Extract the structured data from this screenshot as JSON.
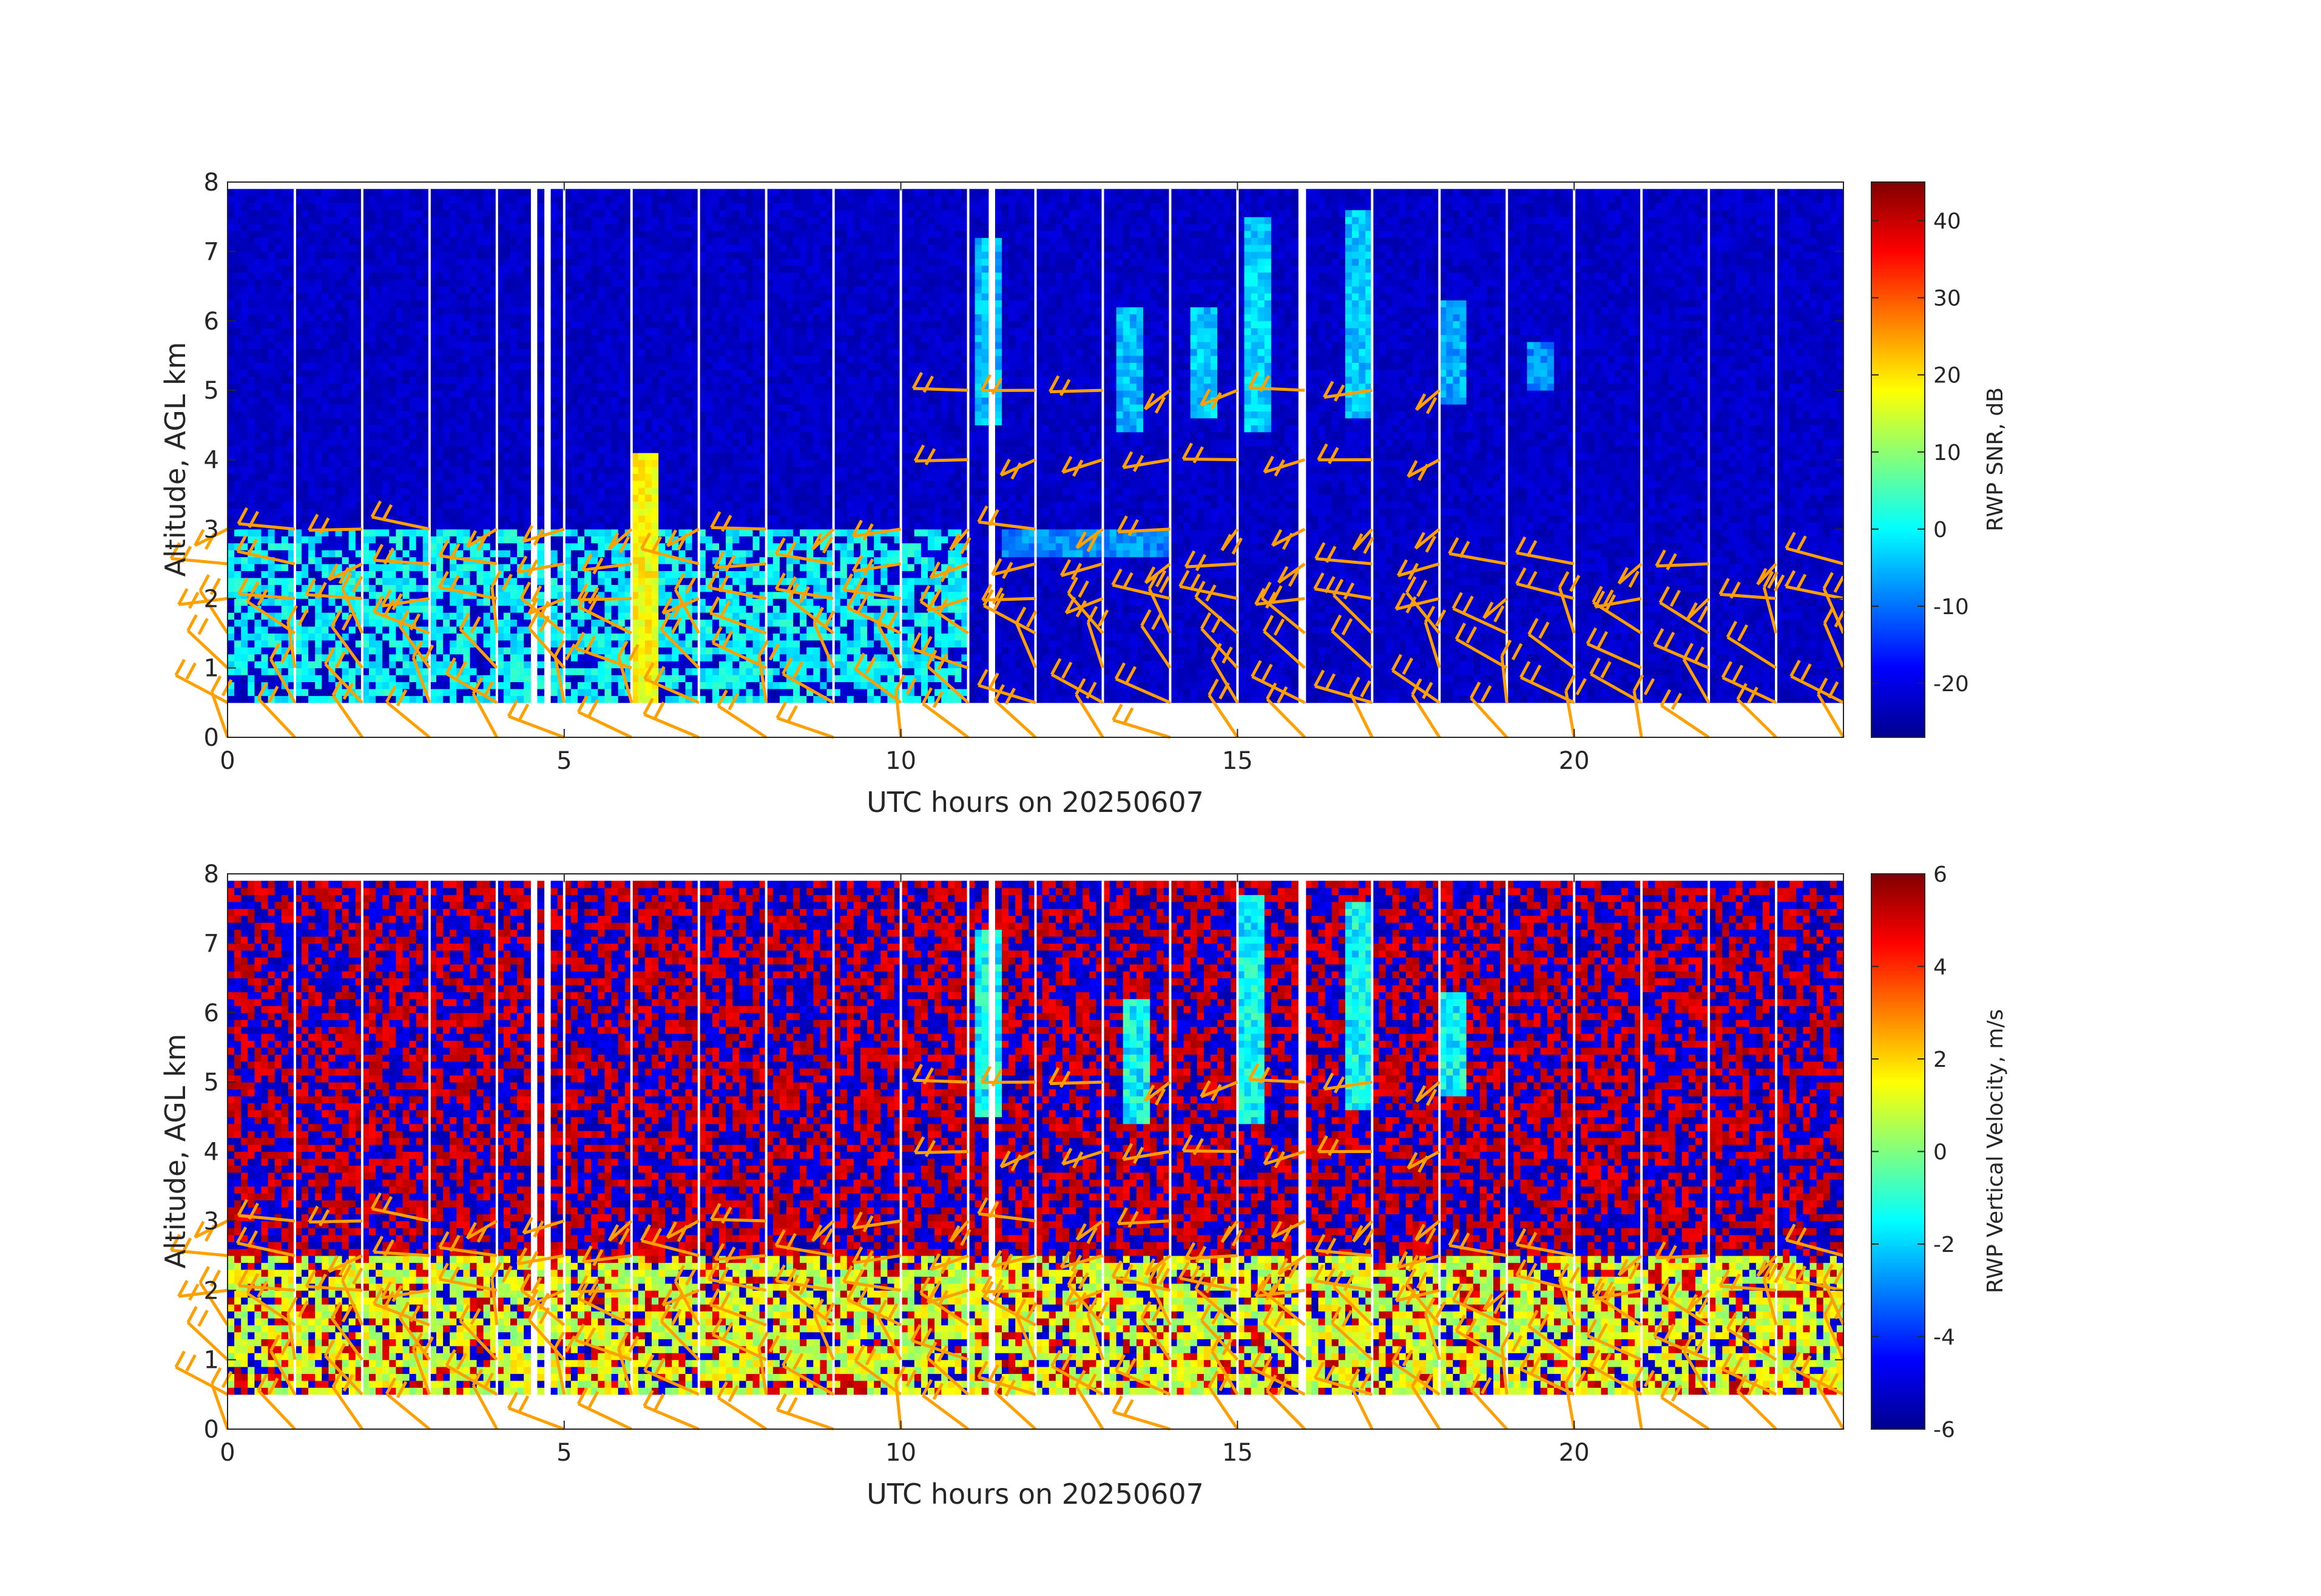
{
  "chart_data": [
    {
      "type": "heatmap",
      "title": "",
      "xlabel": "UTC hours on 20250607",
      "ylabel": "Altitude, AGL km",
      "xlim": [
        0,
        24
      ],
      "ylim": [
        0,
        8
      ],
      "x_ticks": [
        0,
        5,
        10,
        15,
        20
      ],
      "y_ticks": [
        0,
        1,
        2,
        3,
        4,
        5,
        6,
        7,
        8
      ],
      "data_range_km": [
        0.5,
        7.9
      ],
      "colormap": "jet",
      "colorbar": {
        "label": "RWP SNR, dB",
        "range": [
          -27,
          45
        ],
        "ticks": [
          -20,
          -10,
          0,
          10,
          20,
          30,
          40
        ]
      },
      "background_value": -22,
      "features": [
        {
          "name": "boundary-layer",
          "x_range": [
            0,
            11
          ],
          "alt_range": [
            0.5,
            3.0
          ],
          "value": 0
        },
        {
          "name": "convective-plume",
          "x": 6.2,
          "alt_range": [
            0.5,
            4.1
          ],
          "value": 18
        },
        {
          "name": "upper-cloud",
          "x": 11.3,
          "alt_range": [
            4.5,
            7.2
          ],
          "value": -5
        },
        {
          "name": "upper-cloud",
          "x": 13.4,
          "alt_range": [
            4.4,
            6.2
          ],
          "value": -5
        },
        {
          "name": "upper-cloud",
          "x": 14.5,
          "alt_range": [
            4.6,
            6.2
          ],
          "value": -4
        },
        {
          "name": "upper-cloud",
          "x": 15.3,
          "alt_range": [
            4.4,
            7.5
          ],
          "value": -3
        },
        {
          "name": "upper-cloud",
          "x": 16.8,
          "alt_range": [
            4.6,
            7.6
          ],
          "value": -4
        },
        {
          "name": "upper-cloud",
          "x": 18.2,
          "alt_range": [
            4.8,
            6.3
          ],
          "value": -6
        },
        {
          "name": "upper-cloud",
          "x": 19.5,
          "alt_range": [
            5.0,
            5.7
          ],
          "value": -8
        },
        {
          "name": "mid-layer",
          "x_range": [
            11.5,
            14.0
          ],
          "alt_range": [
            2.6,
            3.0
          ],
          "value": -8
        }
      ],
      "wind_barbs": "orange, hourly, altitudes 0-5 km"
    },
    {
      "type": "heatmap",
      "title": "",
      "xlabel": "UTC hours on 20250607",
      "ylabel": "Altitude, AGL km",
      "xlim": [
        0,
        24
      ],
      "ylim": [
        0,
        8
      ],
      "x_ticks": [
        0,
        5,
        10,
        15,
        20
      ],
      "y_ticks": [
        0,
        1,
        2,
        3,
        4,
        5,
        6,
        7,
        8
      ],
      "data_range_km": [
        0.5,
        7.9
      ],
      "colormap": "jet",
      "colorbar": {
        "label": "RWP Vertical Velocity, m/s",
        "range": [
          -6,
          6
        ],
        "ticks": [
          -6,
          -4,
          -2,
          0,
          2,
          4,
          6
        ]
      },
      "background": "noise (alternating -6 / +6 m/s)",
      "features": [
        {
          "name": "boundary-layer",
          "x_range": [
            0,
            24
          ],
          "alt_range": [
            0.5,
            2.5
          ],
          "value": 1
        },
        {
          "name": "upper-cloud",
          "x": 11.3,
          "alt_range": [
            4.5,
            7.2
          ],
          "value": -1.5
        },
        {
          "name": "upper-cloud",
          "x": 13.5,
          "alt_range": [
            4.4,
            6.2
          ],
          "value": -1.5
        },
        {
          "name": "upper-cloud",
          "x": 15.2,
          "alt_range": [
            4.4,
            7.7
          ],
          "value": -1.5
        },
        {
          "name": "upper-cloud",
          "x": 16.8,
          "alt_range": [
            4.6,
            7.6
          ],
          "value": -1.5
        },
        {
          "name": "upper-cloud",
          "x": 18.2,
          "alt_range": [
            4.8,
            6.3
          ],
          "value": -1.5
        }
      ],
      "wind_barbs": "orange, hourly, altitudes 0-5 km"
    }
  ],
  "panels": [
    {
      "xlabel": "UTC hours on 20250607",
      "ylabel": "Altitude, AGL km",
      "cb_label": "RWP SNR, dB",
      "x_ticks": [
        "0",
        "5",
        "10",
        "15",
        "20"
      ],
      "y_ticks": [
        "0",
        "1",
        "2",
        "3",
        "4",
        "5",
        "6",
        "7",
        "8"
      ],
      "cb_ticks": [
        "-20",
        "-10",
        "0",
        "10",
        "20",
        "30",
        "40"
      ]
    },
    {
      "xlabel": "UTC hours on 20250607",
      "ylabel": "Altitude, AGL km",
      "cb_label": "RWP Vertical Velocity, m/s",
      "x_ticks": [
        "0",
        "5",
        "10",
        "15",
        "20"
      ],
      "y_ticks": [
        "0",
        "1",
        "2",
        "3",
        "4",
        "5",
        "6",
        "7",
        "8"
      ],
      "cb_ticks": [
        "-6",
        "-4",
        "-2",
        "0",
        "2",
        "4",
        "6"
      ]
    }
  ],
  "colors": {
    "barb": "#ff9f00",
    "axis": "#262626"
  }
}
